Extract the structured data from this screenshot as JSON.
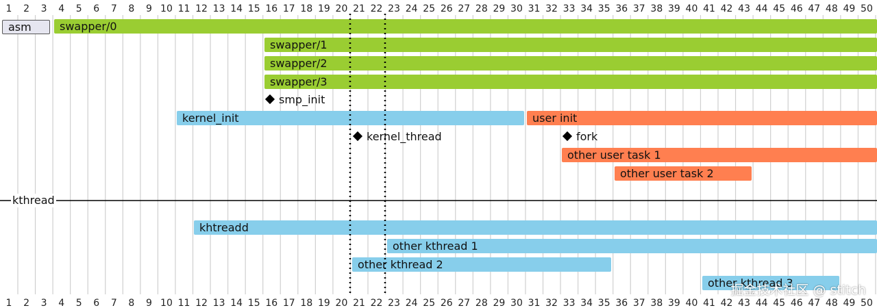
{
  "ticks": [
    "1",
    "2",
    "3",
    "4",
    "5",
    "6",
    "7",
    "8",
    "9",
    "10",
    "11",
    "12",
    "13",
    "14",
    "15",
    "16",
    "17",
    "18",
    "19",
    "20",
    "21",
    "22",
    "23",
    "24",
    "25",
    "26",
    "27",
    "28",
    "29",
    "30",
    "31",
    "32",
    "33",
    "34",
    "35",
    "36",
    "37",
    "38",
    "39",
    "40",
    "41",
    "42",
    "43",
    "44",
    "45",
    "46",
    "47",
    "48",
    "49",
    "50"
  ],
  "colors": {
    "green": "#9acd32",
    "blue": "#87ceeb",
    "orange": "#ff7f50",
    "asm": "#e6e6f0"
  },
  "bars": {
    "asm": "asm",
    "swapper0": "swapper/0",
    "swapper1": "swapper/1",
    "swapper2": "swapper/2",
    "swapper3": "swapper/3",
    "kernel_init": "kernel_init",
    "user_init": "user init",
    "other_user_task_1": "other user task 1",
    "other_user_task_2": "other user task 2",
    "kthreadd": "khtreadd",
    "other_kthread_1": "other kthread 1",
    "other_kthread_2": "other kthread 2",
    "other_kthread_3": "other kthread 3"
  },
  "markers": {
    "smp_init": "smp_init",
    "kernel_thread": "kernel_thread",
    "fork": "fork"
  },
  "separator_label": "kthread",
  "watermark": "掘金技术社区 @ stitch"
}
